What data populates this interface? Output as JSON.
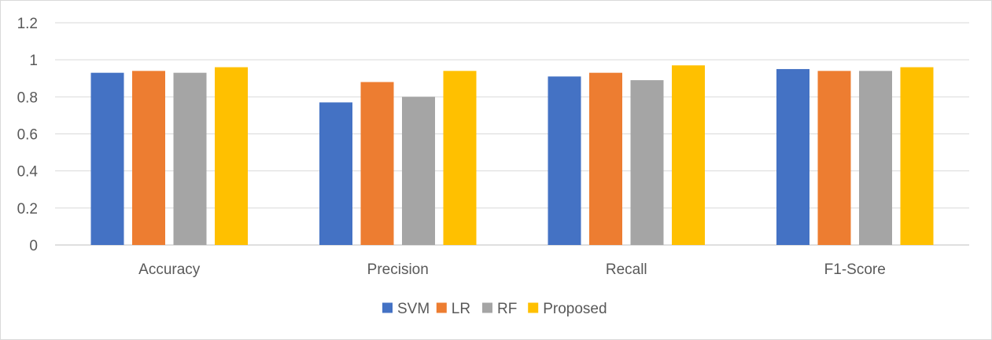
{
  "chart_data": {
    "type": "bar",
    "categories": [
      "Accuracy",
      "Precision",
      "Recall",
      "F1-Score"
    ],
    "series": [
      {
        "name": "SVM",
        "values": [
          0.93,
          0.77,
          0.91,
          0.95
        ],
        "color": "#4472c4"
      },
      {
        "name": "LR",
        "values": [
          0.94,
          0.88,
          0.93,
          0.94
        ],
        "color": "#ed7d31"
      },
      {
        "name": "RF",
        "values": [
          0.93,
          0.8,
          0.89,
          0.94
        ],
        "color": "#a5a5a5"
      },
      {
        "name": "Proposed",
        "values": [
          0.96,
          0.94,
          0.97,
          0.96
        ],
        "color": "#ffc000"
      }
    ],
    "yticks": [
      "0",
      "0.2",
      "0.4",
      "0.6",
      "0.8",
      "1",
      "1.2"
    ],
    "ylim": [
      0,
      1.2
    ],
    "grid": true,
    "legend_position": "bottom",
    "gridline_color": "#d9d9d9",
    "axis_color": "#bfbfbf",
    "text_color": "#595959"
  }
}
